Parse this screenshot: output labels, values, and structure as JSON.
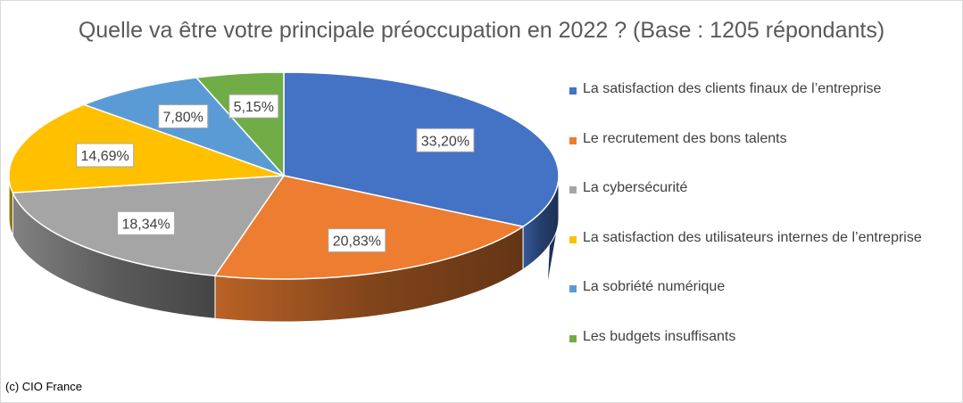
{
  "title": "Quelle va être votre principale préoccupation en 2022 ? (Base : 1205 répondants)",
  "credit": "(c) CIO France",
  "chart_data": {
    "type": "pie",
    "style": "3d",
    "legend_position": "right",
    "categories": [
      "La satisfaction des clients finaux de l’entreprise",
      "Le recrutement des bons talents",
      "La cybersécurité",
      "La satisfaction des utilisateurs internes de l’entreprise",
      "La sobriété numérique",
      "Les budgets insuffisants"
    ],
    "values": [
      33.2,
      20.83,
      18.34,
      14.69,
      7.8,
      5.15
    ],
    "data_labels": [
      "33,20%",
      "20,83%",
      "18,34%",
      "14,69%",
      "7,80%",
      "5,15%"
    ],
    "colors": [
      "#4472C4",
      "#ED7D31",
      "#A5A5A5",
      "#FFC000",
      "#5B9BD5",
      "#70AD47"
    ]
  }
}
